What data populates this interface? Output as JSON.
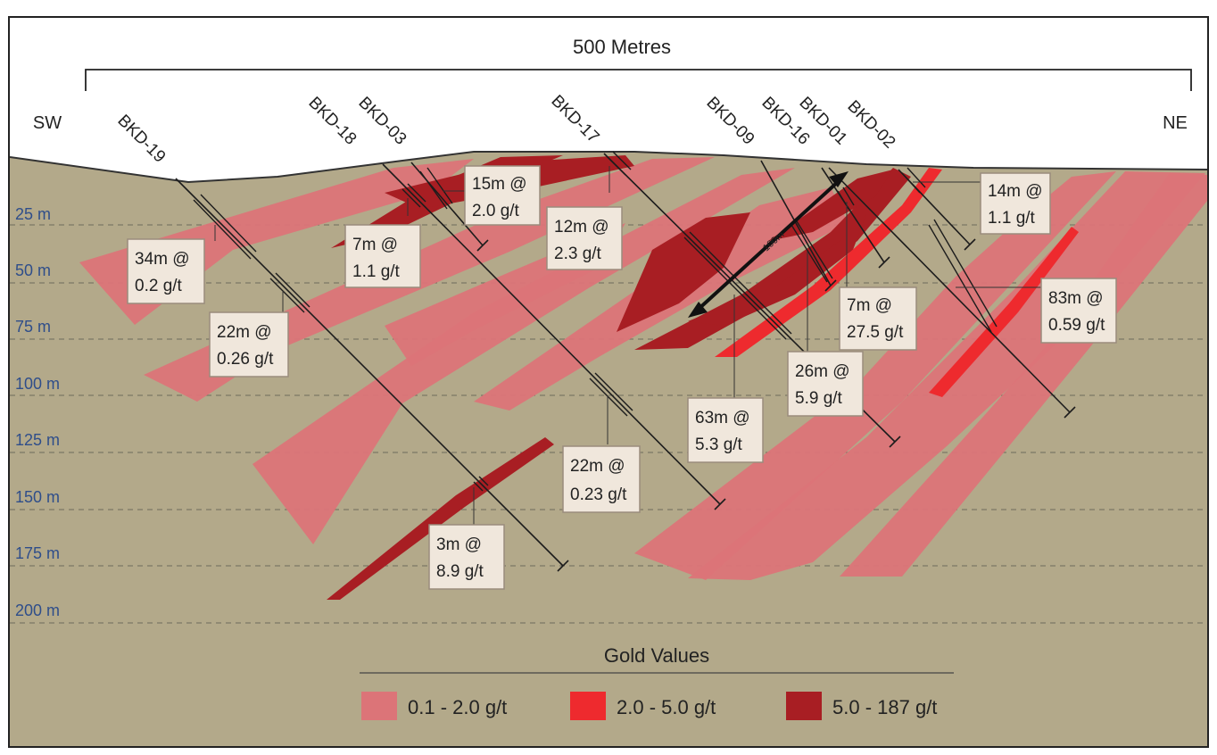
{
  "scale_label": "500 Metres",
  "direction": {
    "left": "SW",
    "right": "NE"
  },
  "depths": [
    "25 m",
    "50 m",
    "75 m",
    "100 m",
    "125 m",
    "150 m",
    "175 m",
    "200 m"
  ],
  "holes": [
    "BKD-19",
    "BKD-18",
    "BKD-03",
    "BKD-17",
    "BKD-09",
    "BKD-16",
    "BKD-01",
    "BKD-02"
  ],
  "intervals": [
    {
      "l1": "34m @",
      "l2": "0.2 g/t"
    },
    {
      "l1": "22m @",
      "l2": "0.26 g/t"
    },
    {
      "l1": "7m @",
      "l2": "1.1 g/t"
    },
    {
      "l1": "15m @",
      "l2": "2.0 g/t"
    },
    {
      "l1": "12m @",
      "l2": "2.3 g/t"
    },
    {
      "l1": "22m @",
      "l2": "0.23 g/t"
    },
    {
      "l1": "3m @",
      "l2": "8.9 g/t"
    },
    {
      "l1": "63m @",
      "l2": "5.3 g/t"
    },
    {
      "l1": "26m @",
      "l2": "5.9 g/t"
    },
    {
      "l1": "7m @",
      "l2": "27.5 g/t"
    },
    {
      "l1": "14m @",
      "l2": "1.1 g/t"
    },
    {
      "l1": "83m @",
      "l2": "0.59 g/t"
    }
  ],
  "arrow_label": "100m",
  "legend": {
    "title": "Gold Values",
    "items": [
      {
        "label": "0.1 - 2.0 g/t",
        "color": "#dc7478"
      },
      {
        "label": "2.0 - 5.0 g/t",
        "color": "#ee2a2e"
      },
      {
        "label": "5.0 - 187 g/t",
        "color": "#a81e23"
      }
    ]
  },
  "colors": {
    "ground": "#b3a98a",
    "sky": "#ffffff",
    "low": "#dc7478",
    "mid": "#ee2a2e",
    "high": "#a81e23"
  }
}
